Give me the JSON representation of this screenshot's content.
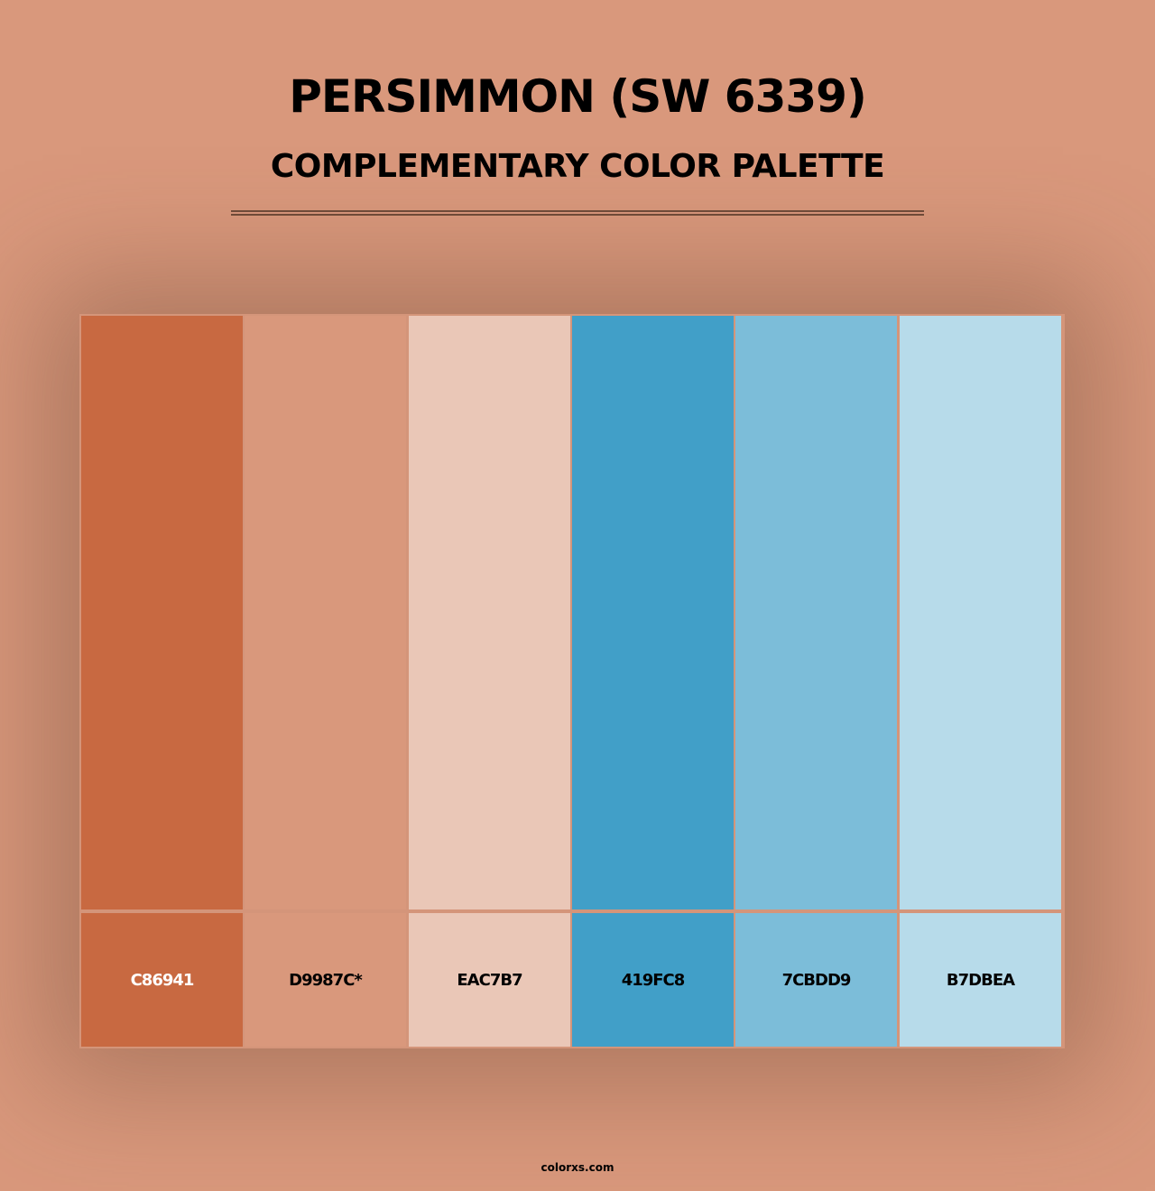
{
  "header": {
    "title": "PERSIMMON (SW 6339)",
    "subtitle": "COMPLEMENTARY COLOR PALETTE"
  },
  "palette": [
    {
      "hex": "#C86941",
      "label": "C86941",
      "text_color": "#ffffff"
    },
    {
      "hex": "#D9987C",
      "label": "D9987C*",
      "text_color": "#000000"
    },
    {
      "hex": "#EAC7B7",
      "label": "EAC7B7",
      "text_color": "#000000"
    },
    {
      "hex": "#419FC8",
      "label": "419FC8",
      "text_color": "#000000"
    },
    {
      "hex": "#7CBDD9",
      "label": "7CBDD9",
      "text_color": "#000000"
    },
    {
      "hex": "#B7DBEA",
      "label": "B7DBEA",
      "text_color": "#000000"
    }
  ],
  "footer": {
    "site": "colorxs.com"
  }
}
